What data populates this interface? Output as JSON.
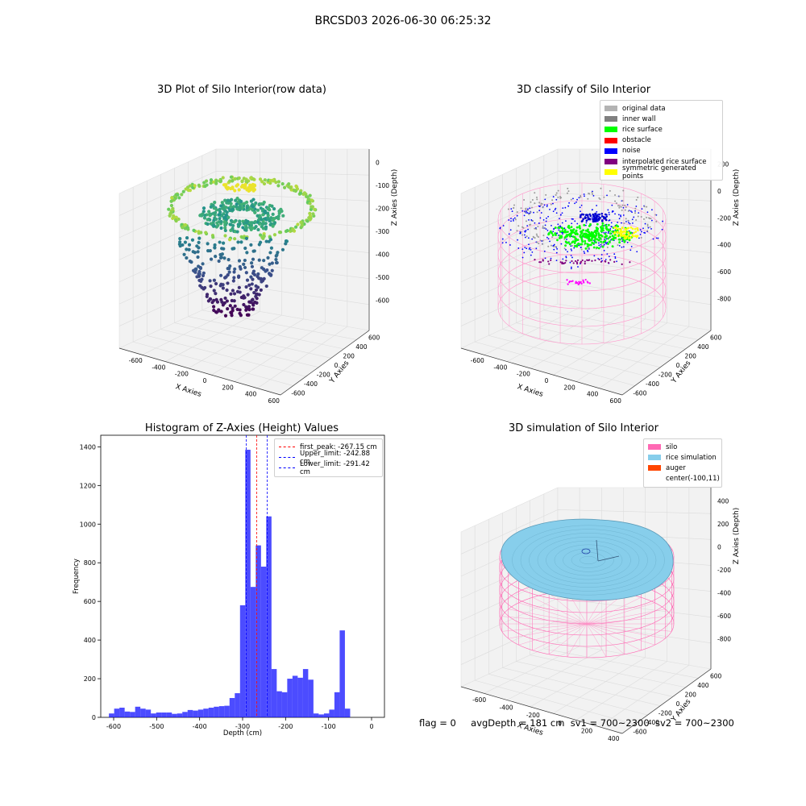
{
  "suptitle": "BRCSD03 2026-06-30 06:25:32",
  "panel1": {
    "title": "3D Plot of Silo Interior(row data)",
    "xlabel": "X Axies",
    "ylabel": "Y Axies",
    "zlabel": "Z Axies (Depth)",
    "xticks": [
      "-600",
      "-400",
      "-200",
      "0",
      "200",
      "400",
      "600"
    ],
    "yticks": [
      "-600",
      "-400",
      "-200",
      "0",
      "200",
      "400",
      "600"
    ],
    "zticks": [
      "0",
      "-100",
      "-200",
      "-300",
      "-400",
      "-500",
      "-600"
    ]
  },
  "panel2": {
    "title": "3D classify of Silo Interior",
    "xlabel": "X Axies",
    "ylabel": "Y Axies",
    "zlabel": "Z Axies (Depth)",
    "xticks": [
      "-600",
      "-400",
      "-200",
      "0",
      "200",
      "400",
      "600"
    ],
    "yticks": [
      "-600",
      "-400",
      "-200",
      "0",
      "200",
      "400",
      "600"
    ],
    "zticks": [
      "200",
      "0",
      "-200",
      "-400",
      "-600",
      "-800"
    ],
    "legend": [
      {
        "label": "original data",
        "color": "#b3b3b3"
      },
      {
        "label": "inner wall",
        "color": "#808080"
      },
      {
        "label": "rice surface",
        "color": "#00ff00"
      },
      {
        "label": "obstacle",
        "color": "#ff0000"
      },
      {
        "label": "noise",
        "color": "#0000ff"
      },
      {
        "label": "interpolated rice surface",
        "color": "#800080"
      },
      {
        "label": "symmetric generated points",
        "color": "#ffff00"
      }
    ]
  },
  "panel4": {
    "title": "3D simulation of Silo Interior",
    "xlabel": "X Axies",
    "ylabel": "Y Axies",
    "zlabel": "Z Axies (Depth)",
    "xticks": [
      "-600",
      "-400",
      "-200",
      "0",
      "200",
      "400"
    ],
    "yticks": [
      "-600",
      "-400",
      "-200",
      "0",
      "200",
      "400",
      "600"
    ],
    "zticks": [
      "400",
      "200",
      "0",
      "-200",
      "-400",
      "-600",
      "-800"
    ],
    "legend": [
      {
        "label": "silo",
        "color": "#ff69b4"
      },
      {
        "label": "rice simulation",
        "color": "#87ceeb"
      },
      {
        "label": "auger",
        "color": "#ff4500"
      },
      {
        "label": "center(-100,11)",
        "color": ""
      }
    ]
  },
  "chart_data": {
    "type": "bar",
    "title": "Histogram of Z-Axies (Height) Values",
    "xlabel": "Depth (cm)",
    "ylabel": "Frequency",
    "xlim": [
      -630,
      30
    ],
    "ylim": [
      0,
      1460
    ],
    "xticks": [
      -600,
      -500,
      -400,
      -300,
      -200,
      -100,
      0
    ],
    "yticks": [
      0,
      200,
      400,
      600,
      800,
      1000,
      1200,
      1400
    ],
    "bar_color": "#0000ff",
    "bin_width": 12.2,
    "bin_starts": [
      -611,
      -598.8,
      -586.6,
      -574.4,
      -562.2,
      -550,
      -537.8,
      -525.6,
      -513.4,
      -501.2,
      -489,
      -476.8,
      -464.6,
      -452.4,
      -440.2,
      -428,
      -415.8,
      -403.6,
      -391.4,
      -379.2,
      -367,
      -354.8,
      -342.6,
      -330.4,
      -318.2,
      -306,
      -293.8,
      -281.6,
      -269.4,
      -257.2,
      -245,
      -232.8,
      -220.6,
      -208.4,
      -196.2,
      -184,
      -171.8,
      -159.6,
      -147.4,
      -135.2,
      -123,
      -110.8,
      -98.6,
      -86.4,
      -74.2,
      -62,
      -49.8,
      -37.6,
      -25.4,
      -13.2
    ],
    "values": [
      20,
      45,
      50,
      30,
      28,
      55,
      45,
      40,
      20,
      25,
      25,
      25,
      18,
      20,
      28,
      38,
      35,
      40,
      45,
      50,
      55,
      58,
      60,
      100,
      125,
      580,
      1385,
      675,
      890,
      780,
      1040,
      250,
      135,
      130,
      200,
      215,
      205,
      250,
      195,
      20,
      15,
      20,
      40,
      130,
      450,
      45,
      0,
      0,
      0,
      0
    ],
    "vlines": [
      {
        "label": "first_peak: -267.15 cm",
        "x": -267.15,
        "color": "#ff0000"
      },
      {
        "label": "Upper_limit: -242.88 cm",
        "x": -242.88,
        "color": "#0000ff"
      },
      {
        "label": "Lower_limit: -291.42 cm",
        "x": -291.42,
        "color": "#0000ff"
      }
    ]
  },
  "footer": {
    "flag": "flag = 0",
    "avg": "avgDepth = 181 cm",
    "sv1": "sv1 = 700~2300",
    "sv2": "sv2 = 700~2300"
  }
}
